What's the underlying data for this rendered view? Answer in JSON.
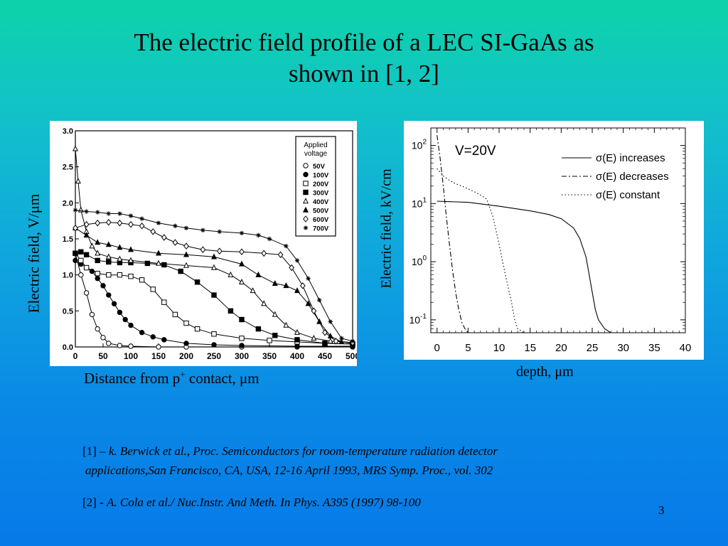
{
  "slide": {
    "title_line1": "The electric field profile of a LEC SI-GaAs as",
    "title_line2": "shown in [1, 2]",
    "page_number": "3",
    "references": [
      {
        "prefix": "[1] – ",
        "text_line1": "k. Berwick et al., Proc. Semiconductors for room-temperature radiation detector",
        "text_line2": "applications,San Francisco, CA, USA, 12-16 April 1993, MRS Symp. Proc., vol. 302"
      },
      {
        "prefix": "[2] - ",
        "text_line1": "A. Cola et al./ Nuc.Instr. And Meth. In Phys. A395 (1997) 98-100"
      }
    ]
  },
  "chart_data": [
    {
      "type": "line",
      "title": "",
      "xlabel_main": "Distance from p",
      "xlabel_sup": "+",
      "xlabel_tail": " contact, μm",
      "ylabel": "Electric field,  V/μm",
      "xlim": [
        0,
        500
      ],
      "ylim": [
        0,
        3.0
      ],
      "x_ticks": [
        "0",
        "50",
        "100",
        "150",
        "200",
        "250",
        "300",
        "350",
        "400",
        "450",
        "500"
      ],
      "y_ticks": [
        "0.0",
        "0.5",
        "1.0",
        "1.5",
        "2.0",
        "2.5",
        "3.0"
      ],
      "legend_title_line1": "Applied",
      "legend_title_line2": "voltage",
      "legend_position": "top-right",
      "series": [
        {
          "name": "50V",
          "marker": "circle-open",
          "x": [
            0,
            10,
            20,
            30,
            40,
            50,
            60,
            80,
            100,
            150,
            200,
            300,
            400,
            500
          ],
          "y": [
            1.3,
            1.0,
            0.75,
            0.45,
            0.25,
            0.13,
            0.05,
            0.02,
            0.01,
            0.0,
            0.0,
            0.0,
            0.0,
            0.0
          ]
        },
        {
          "name": "100V",
          "marker": "circle-filled",
          "x": [
            0,
            10,
            20,
            30,
            40,
            50,
            60,
            70,
            80,
            90,
            100,
            120,
            140,
            160,
            200,
            250,
            300,
            400,
            500
          ],
          "y": [
            1.2,
            1.15,
            1.1,
            1.05,
            0.95,
            0.85,
            0.72,
            0.6,
            0.48,
            0.38,
            0.3,
            0.2,
            0.14,
            0.1,
            0.05,
            0.03,
            0.02,
            0.01,
            0.01
          ]
        },
        {
          "name": "200V",
          "marker": "square-open",
          "x": [
            0,
            10,
            20,
            40,
            60,
            80,
            100,
            120,
            140,
            160,
            180,
            200,
            220,
            250,
            300,
            350,
            400,
            450,
            500
          ],
          "y": [
            1.3,
            1.2,
            1.1,
            1.02,
            1.0,
            1.0,
            0.98,
            0.93,
            0.8,
            0.62,
            0.45,
            0.33,
            0.25,
            0.18,
            0.12,
            0.09,
            0.07,
            0.05,
            0.04
          ]
        },
        {
          "name": "300V",
          "marker": "square-filled",
          "x": [
            0,
            10,
            20,
            40,
            60,
            80,
            100,
            130,
            160,
            190,
            220,
            250,
            280,
            300,
            330,
            360,
            400,
            450,
            500
          ],
          "y": [
            1.3,
            1.32,
            1.28,
            1.2,
            1.18,
            1.17,
            1.17,
            1.16,
            1.14,
            1.05,
            0.9,
            0.72,
            0.5,
            0.38,
            0.25,
            0.16,
            0.1,
            0.05,
            0.04
          ]
        },
        {
          "name": "400V",
          "marker": "triangle-open",
          "x": [
            0,
            5,
            10,
            20,
            30,
            40,
            60,
            80,
            100,
            150,
            200,
            250,
            280,
            300,
            320,
            340,
            360,
            380,
            400,
            430,
            460,
            500
          ],
          "y": [
            2.75,
            2.3,
            1.9,
            1.6,
            1.4,
            1.3,
            1.25,
            1.22,
            1.2,
            1.16,
            1.13,
            1.1,
            1.0,
            0.9,
            0.78,
            0.6,
            0.45,
            0.3,
            0.2,
            0.12,
            0.08,
            0.06
          ]
        },
        {
          "name": "500V",
          "marker": "triangle-filled",
          "x": [
            0,
            20,
            40,
            60,
            80,
            100,
            150,
            200,
            250,
            300,
            330,
            360,
            380,
            400,
            420,
            440,
            460,
            480,
            500
          ],
          "y": [
            1.65,
            1.55,
            1.45,
            1.42,
            1.38,
            1.35,
            1.3,
            1.28,
            1.25,
            1.15,
            1.0,
            0.88,
            0.85,
            0.78,
            0.6,
            0.35,
            0.15,
            0.07,
            0.05
          ]
        },
        {
          "name": "600V",
          "marker": "diamond-open",
          "x": [
            0,
            20,
            40,
            60,
            80,
            100,
            120,
            140,
            160,
            180,
            200,
            230,
            260,
            300,
            340,
            370,
            390,
            410,
            430,
            450,
            470,
            500
          ],
          "y": [
            1.65,
            1.7,
            1.72,
            1.73,
            1.72,
            1.7,
            1.68,
            1.6,
            1.52,
            1.45,
            1.4,
            1.35,
            1.33,
            1.32,
            1.3,
            1.28,
            1.1,
            0.85,
            0.5,
            0.2,
            0.08,
            0.06
          ]
        },
        {
          "name": "700V",
          "marker": "star",
          "x": [
            0,
            20,
            40,
            60,
            80,
            100,
            120,
            150,
            180,
            200,
            230,
            260,
            300,
            330,
            350,
            380,
            400,
            420,
            440,
            460,
            480,
            500
          ],
          "y": [
            1.9,
            1.88,
            1.87,
            1.85,
            1.85,
            1.82,
            1.78,
            1.72,
            1.68,
            1.65,
            1.62,
            1.6,
            1.58,
            1.55,
            1.5,
            1.4,
            1.2,
            0.95,
            0.65,
            0.35,
            0.12,
            0.08
          ]
        }
      ]
    },
    {
      "type": "line",
      "title": "",
      "annotation": "V=20V",
      "xlabel": "depth, μm",
      "ylabel": "Electric field, kV/cm",
      "xlim": [
        -1,
        40
      ],
      "ylim": [
        0.06,
        200
      ],
      "yscale": "log",
      "x_ticks": [
        "0",
        "5",
        "10",
        "15",
        "20",
        "25",
        "30",
        "35",
        "40"
      ],
      "y_tick_base": "10",
      "y_tick_exps": [
        "2",
        "1",
        "0",
        "-1"
      ],
      "legend_position": "top-right",
      "series": [
        {
          "name": "σ(E) increases",
          "style": "solid",
          "x": [
            0,
            5,
            10,
            15,
            18,
            20,
            22,
            23,
            24,
            24.5,
            25,
            25.5,
            26,
            27,
            28,
            30,
            40
          ],
          "y": [
            11,
            10.5,
            9,
            7.5,
            6.5,
            5.5,
            3.8,
            2.5,
            1.2,
            0.6,
            0.3,
            0.15,
            0.1,
            0.07,
            0.06,
            0.06,
            0.06
          ]
        },
        {
          "name": "σ(E) decreases",
          "style": "dashdot",
          "x": [
            0,
            0.5,
            1,
            1.5,
            2,
            2.5,
            3,
            3.5,
            4,
            4.5,
            5,
            40
          ],
          "y": [
            150,
            60,
            20,
            6,
            2,
            0.7,
            0.3,
            0.15,
            0.09,
            0.07,
            0.06,
            0.06
          ]
        },
        {
          "name": "σ(E)  constant",
          "style": "dotted",
          "x": [
            0,
            1,
            2,
            3,
            4,
            5,
            6,
            7,
            8,
            9,
            10,
            11,
            12,
            12.5,
            13,
            14,
            40
          ],
          "y": [
            40,
            30,
            25,
            22,
            20,
            18,
            16,
            14,
            12,
            6,
            2,
            0.6,
            0.2,
            0.1,
            0.07,
            0.06,
            0.06
          ]
        }
      ]
    }
  ]
}
